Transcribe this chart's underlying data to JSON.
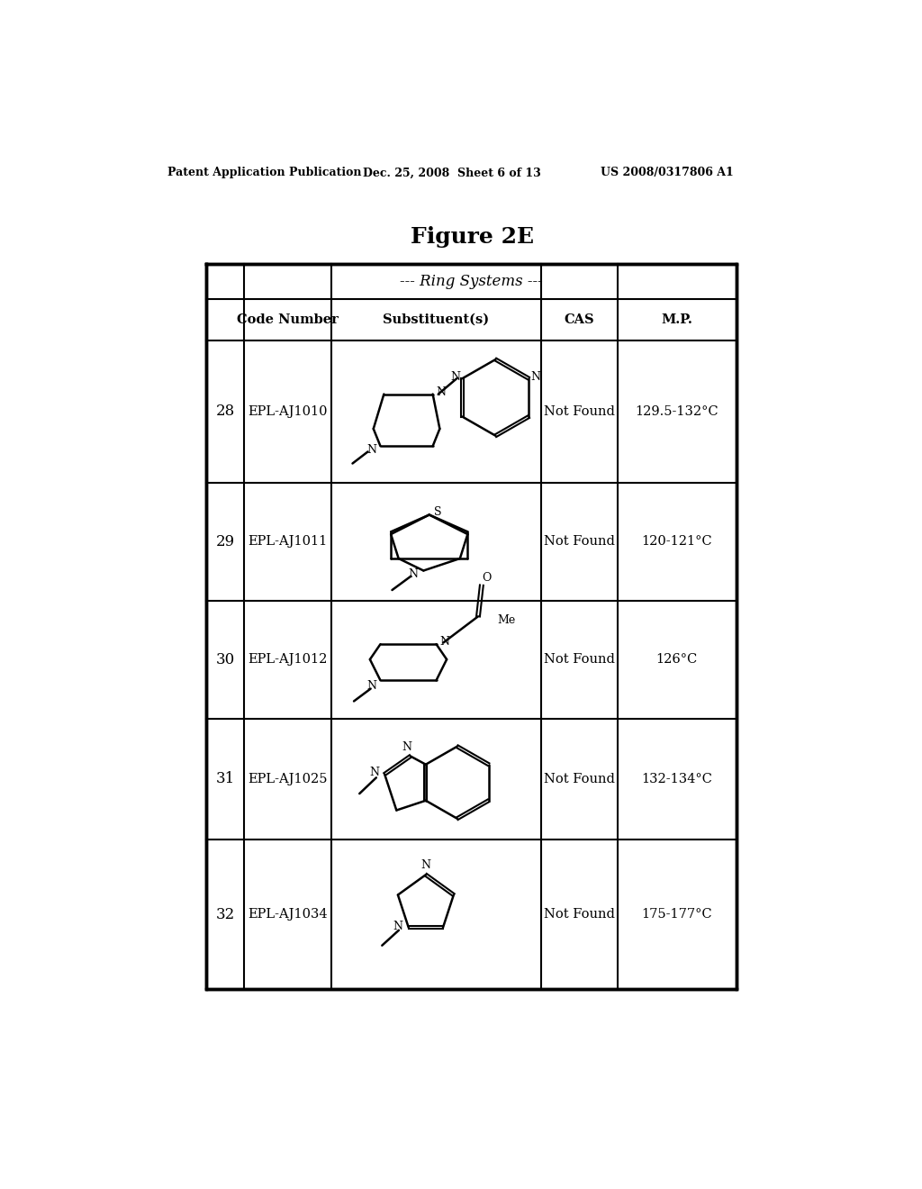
{
  "title": "Figure 2E",
  "header_text": "--- Ring Systems ---",
  "col_headers": [
    "",
    "Code Number",
    "Substituent(s)",
    "CAS",
    "M.P."
  ],
  "rows": [
    {
      "num": "28",
      "code": "EPL-AJ1010",
      "cas": "Not Found",
      "mp": "129.5-132°C"
    },
    {
      "num": "29",
      "code": "EPL-AJ1011",
      "cas": "Not Found",
      "mp": "120-121°C"
    },
    {
      "num": "30",
      "code": "EPL-AJ1012",
      "cas": "Not Found",
      "mp": "126°C"
    },
    {
      "num": "31",
      "code": "EPL-AJ1025",
      "cas": "Not Found",
      "mp": "132-134°C"
    },
    {
      "num": "32",
      "code": "EPL-AJ1034",
      "cas": "Not Found",
      "mp": "175-177°C"
    }
  ],
  "patent_left": "Patent Application Publication",
  "patent_mid": "Dec. 25, 2008  Sheet 6 of 13",
  "patent_right": "US 2008/0317806 A1",
  "bg_color": "#ffffff",
  "text_color": "#000000"
}
